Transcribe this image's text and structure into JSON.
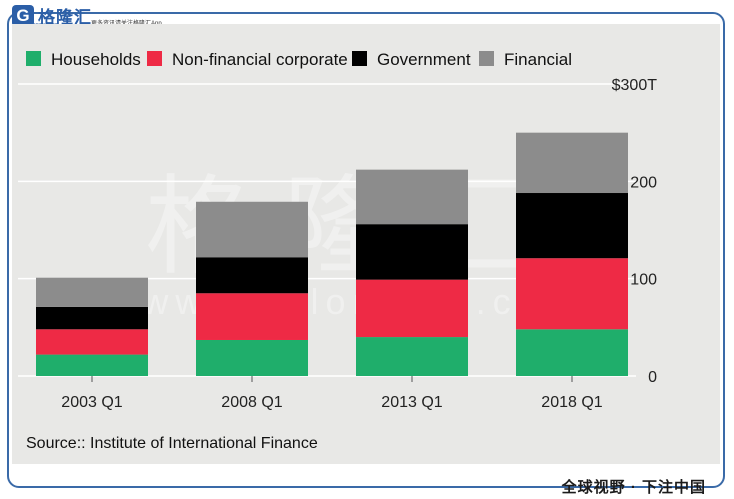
{
  "branding": {
    "logo_name": "格隆汇",
    "logo_domain": "gelonghui.com",
    "logo_tagline": "更多资讯请关注格隆汇App",
    "watermark_cn": "格隆汇",
    "watermark_url": "www.gelonghui.com",
    "footer_slogan": "全球视野 · 下注中国"
  },
  "source": "Source:: Institute of International Finance",
  "y_axis_top_label": "$300T",
  "chart_data": {
    "type": "bar",
    "stacked": true,
    "categories": [
      "2003 Q1",
      "2008 Q1",
      "2013 Q1",
      "2018 Q1"
    ],
    "series": [
      {
        "name": "Households",
        "color": "#1fae6b",
        "values": [
          22,
          37,
          40,
          48
        ]
      },
      {
        "name": "Non-financial corporate",
        "color": "#ee2a45",
        "values": [
          26,
          48,
          59,
          73
        ]
      },
      {
        "name": "Government",
        "color": "#000000",
        "values": [
          23,
          37,
          57,
          67
        ]
      },
      {
        "name": "Financial",
        "color": "#8c8c8c",
        "values": [
          30,
          57,
          56,
          62
        ]
      }
    ],
    "yticks": [
      0,
      100,
      200
    ],
    "ylim": [
      0,
      300
    ],
    "legend_position": "top-left",
    "grid": true
  }
}
